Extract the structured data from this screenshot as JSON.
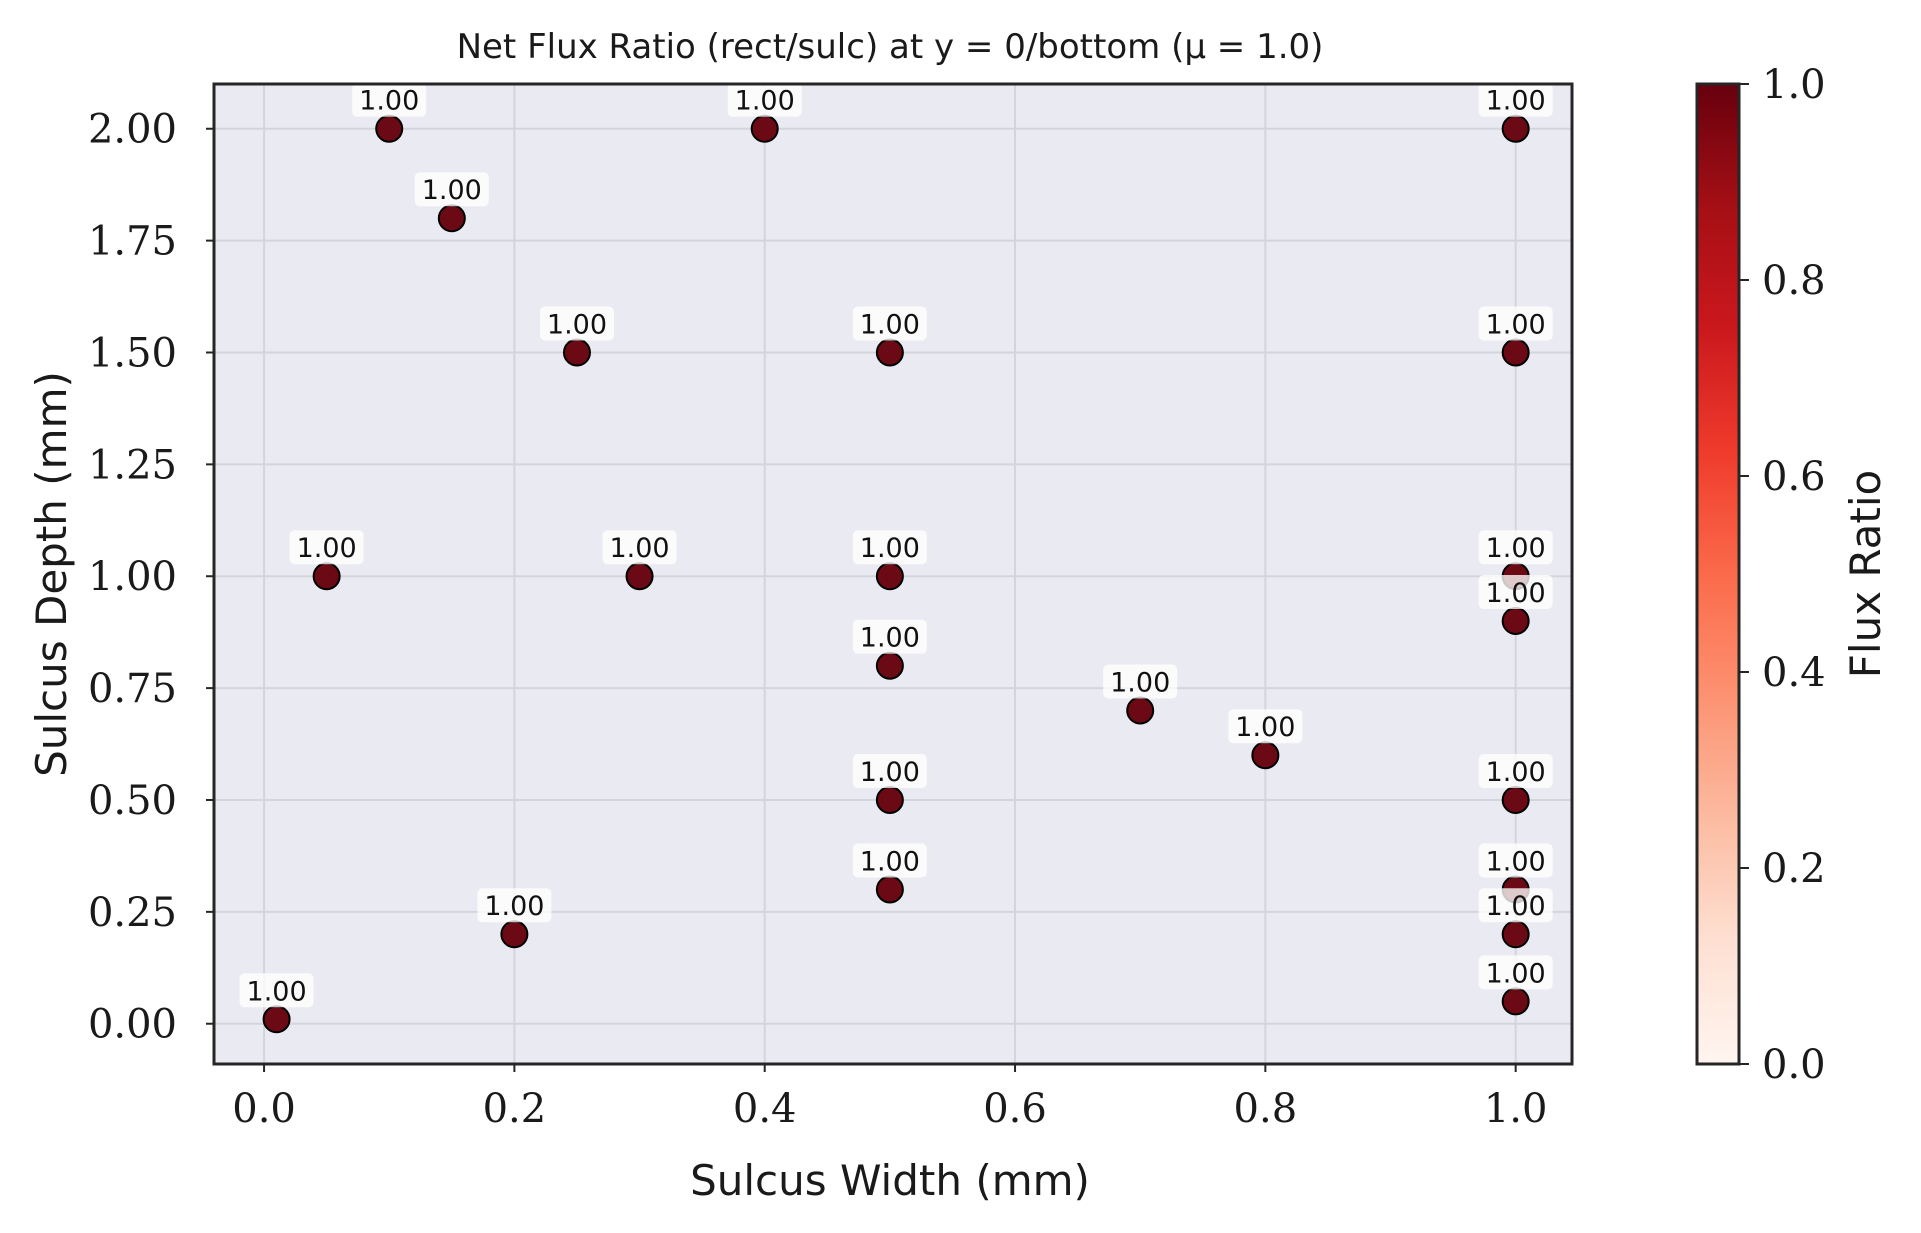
{
  "chart_data": {
    "type": "scatter",
    "title": "Net Flux Ratio (rect/sulc) at y = 0/bottom (μ = 1.0)",
    "xlabel": "Sulcus Width (mm)",
    "ylabel": "Sulcus Depth (mm)",
    "xlim": [
      -0.04,
      1.045
    ],
    "ylim": [
      -0.09,
      2.1
    ],
    "x_ticks": [
      "0.0",
      "0.2",
      "0.4",
      "0.6",
      "0.8",
      "1.0"
    ],
    "y_ticks": [
      "0.00",
      "0.25",
      "0.50",
      "0.75",
      "1.00",
      "1.25",
      "1.50",
      "1.75",
      "2.00"
    ],
    "grid": true,
    "colorbar": {
      "label": "Flux Ratio",
      "colormap": "Reds",
      "range": [
        0.0,
        1.0
      ],
      "ticks": [
        "0.0",
        "0.2",
        "0.4",
        "0.6",
        "0.8",
        "1.0"
      ]
    },
    "marker_color": "#6b0a14",
    "points": [
      {
        "x": 0.01,
        "y": 0.01,
        "value": 1.0,
        "label": "1.00"
      },
      {
        "x": 0.05,
        "y": 1.0,
        "value": 1.0,
        "label": "1.00"
      },
      {
        "x": 0.1,
        "y": 2.0,
        "value": 1.0,
        "label": "1.00"
      },
      {
        "x": 0.15,
        "y": 1.8,
        "value": 1.0,
        "label": "1.00"
      },
      {
        "x": 0.2,
        "y": 0.2,
        "value": 1.0,
        "label": "1.00"
      },
      {
        "x": 0.25,
        "y": 1.5,
        "value": 1.0,
        "label": "1.00"
      },
      {
        "x": 0.3,
        "y": 1.0,
        "value": 1.0,
        "label": "1.00"
      },
      {
        "x": 0.4,
        "y": 2.0,
        "value": 1.0,
        "label": "1.00"
      },
      {
        "x": 0.5,
        "y": 1.5,
        "value": 1.0,
        "label": "1.00"
      },
      {
        "x": 0.5,
        "y": 1.0,
        "value": 1.0,
        "label": "1.00"
      },
      {
        "x": 0.5,
        "y": 0.8,
        "value": 1.0,
        "label": "1.00"
      },
      {
        "x": 0.5,
        "y": 0.5,
        "value": 1.0,
        "label": "1.00"
      },
      {
        "x": 0.5,
        "y": 0.3,
        "value": 1.0,
        "label": "1.00"
      },
      {
        "x": 0.7,
        "y": 0.7,
        "value": 1.0,
        "label": "1.00"
      },
      {
        "x": 0.8,
        "y": 0.6,
        "value": 1.0,
        "label": "1.00"
      },
      {
        "x": 1.0,
        "y": 2.0,
        "value": 1.0,
        "label": "1.00"
      },
      {
        "x": 1.0,
        "y": 1.5,
        "value": 1.0,
        "label": "1.00"
      },
      {
        "x": 1.0,
        "y": 1.0,
        "value": 1.0,
        "label": "1.00"
      },
      {
        "x": 1.0,
        "y": 0.9,
        "value": 1.0,
        "label": "1.00"
      },
      {
        "x": 1.0,
        "y": 0.5,
        "value": 1.0,
        "label": "1.00"
      },
      {
        "x": 1.0,
        "y": 0.3,
        "value": 1.0,
        "label": "1.00"
      },
      {
        "x": 1.0,
        "y": 0.2,
        "value": 1.0,
        "label": "1.00"
      },
      {
        "x": 1.0,
        "y": 0.05,
        "value": 1.0,
        "label": "1.00"
      }
    ]
  }
}
